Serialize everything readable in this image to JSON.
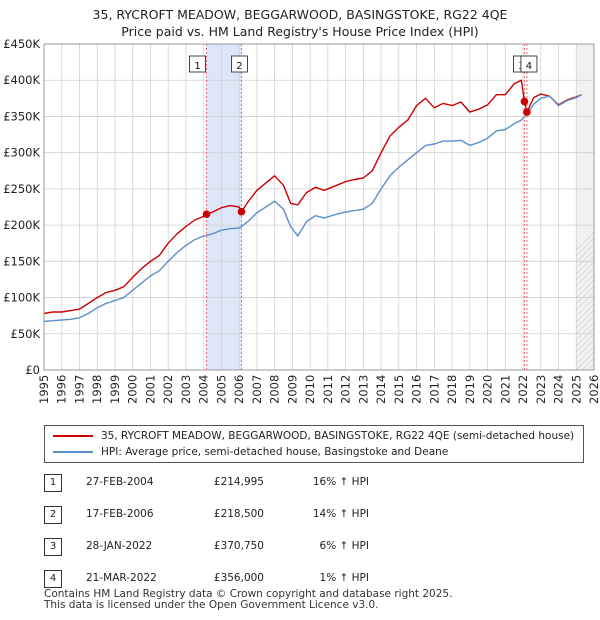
{
  "title_line1": "35, RYCROFT MEADOW, BEGGARWOOD, BASINGSTOKE, RG22 4QE",
  "title_line2": "Price paid vs. HM Land Registry's House Price Index (HPI)",
  "colors": {
    "property": "#cc0000",
    "hpi": "#5b8fcc",
    "shade": "#dde6f7",
    "grid": "#d0d0d0",
    "future": "#e8e8e8"
  },
  "chart_data": {
    "type": "line",
    "xlabel": "",
    "ylabel": "",
    "xlim": [
      1995,
      2026
    ],
    "ylim": [
      0,
      450000
    ],
    "x_ticks": [
      1995,
      1996,
      1997,
      1998,
      1999,
      2000,
      2001,
      2002,
      2003,
      2004,
      2005,
      2006,
      2007,
      2008,
      2009,
      2010,
      2011,
      2012,
      2013,
      2014,
      2015,
      2016,
      2017,
      2018,
      2019,
      2020,
      2021,
      2022,
      2023,
      2024,
      2025,
      2026
    ],
    "y_ticks": [
      {
        "value": 0,
        "label": "£0"
      },
      {
        "value": 50000,
        "label": "£50K"
      },
      {
        "value": 100000,
        "label": "£100K"
      },
      {
        "value": 150000,
        "label": "£150K"
      },
      {
        "value": 200000,
        "label": "£200K"
      },
      {
        "value": 250000,
        "label": "£250K"
      },
      {
        "value": 300000,
        "label": "£300K"
      },
      {
        "value": 350000,
        "label": "£350K"
      },
      {
        "value": 400000,
        "label": "£400K"
      },
      {
        "value": 450000,
        "label": "£450K"
      }
    ],
    "shaded_period": [
      2004.16,
      2006.13
    ],
    "future_start": 2025.0,
    "series": [
      {
        "name": "35, RYCROFT MEADOW, BEGGARWOOD, BASINGSTOKE, RG22 4QE (semi-detached house)",
        "color": "#cc0000",
        "x": [
          1995.0,
          1995.5,
          1996.0,
          1996.5,
          1997.0,
          1997.5,
          1998.0,
          1998.5,
          1999.0,
          1999.5,
          2000.0,
          2000.5,
          2001.0,
          2001.5,
          2002.0,
          2002.5,
          2003.0,
          2003.5,
          2004.0,
          2004.16,
          2004.5,
          2005.0,
          2005.5,
          2006.0,
          2006.13,
          2006.5,
          2007.0,
          2007.5,
          2008.0,
          2008.5,
          2008.9,
          2009.3,
          2009.8,
          2010.3,
          2010.8,
          2011.5,
          2012.0,
          2012.5,
          2013.0,
          2013.5,
          2014.0,
          2014.5,
          2015.0,
          2015.5,
          2016.0,
          2016.5,
          2017.0,
          2017.5,
          2018.0,
          2018.5,
          2019.0,
          2019.5,
          2020.0,
          2020.5,
          2021.0,
          2021.5,
          2021.9,
          2022.08,
          2022.22,
          2022.6,
          2023.0,
          2023.5,
          2024.0,
          2024.5,
          2025.0,
          2025.3
        ],
        "y": [
          78000,
          80000,
          80000,
          82000,
          84000,
          92000,
          100000,
          107000,
          110000,
          115000,
          128000,
          140000,
          150000,
          158000,
          175000,
          188000,
          198000,
          207000,
          212000,
          214995,
          218000,
          224000,
          227000,
          225000,
          218500,
          232000,
          248000,
          258000,
          268000,
          255000,
          230000,
          228000,
          245000,
          252000,
          248000,
          255000,
          260000,
          263000,
          265000,
          275000,
          300000,
          323000,
          335000,
          345000,
          365000,
          375000,
          362000,
          368000,
          365000,
          370000,
          356000,
          360000,
          366000,
          380000,
          380000,
          395000,
          400000,
          370750,
          356000,
          376000,
          381000,
          378000,
          366000,
          373000,
          377000,
          380000
        ]
      },
      {
        "name": "HPI: Average price, semi-detached house, Basingstoke and Deane",
        "color": "#5b8fcc",
        "x": [
          1995.0,
          1995.5,
          1996.0,
          1996.5,
          1997.0,
          1997.5,
          1998.0,
          1998.5,
          1999.0,
          1999.5,
          2000.0,
          2000.5,
          2001.0,
          2001.5,
          2002.0,
          2002.5,
          2003.0,
          2003.5,
          2004.0,
          2004.5,
          2005.0,
          2005.5,
          2006.0,
          2006.5,
          2007.0,
          2007.5,
          2008.0,
          2008.5,
          2008.9,
          2009.3,
          2009.8,
          2010.3,
          2010.8,
          2011.5,
          2012.0,
          2012.5,
          2013.0,
          2013.5,
          2014.0,
          2014.5,
          2015.0,
          2015.5,
          2016.0,
          2016.5,
          2017.0,
          2017.5,
          2018.0,
          2018.5,
          2019.0,
          2019.5,
          2020.0,
          2020.5,
          2021.0,
          2021.5,
          2021.9,
          2022.08,
          2022.22,
          2022.6,
          2023.0,
          2023.5,
          2024.0,
          2024.5,
          2025.0,
          2025.3
        ],
        "y": [
          67000,
          68000,
          69000,
          70000,
          72000,
          78000,
          86000,
          92000,
          96000,
          100000,
          110000,
          120000,
          130000,
          137000,
          150000,
          162000,
          172000,
          180000,
          185000,
          188000,
          193000,
          195000,
          196000,
          205000,
          217000,
          225000,
          233000,
          222000,
          198000,
          185000,
          205000,
          213000,
          210000,
          215000,
          218000,
          220000,
          222000,
          230000,
          250000,
          268000,
          280000,
          290000,
          300000,
          310000,
          312000,
          316000,
          316000,
          317000,
          310000,
          314000,
          320000,
          330000,
          332000,
          340000,
          345000,
          350000,
          353000,
          367000,
          375000,
          378000,
          365000,
          372000,
          376000,
          380000
        ]
      }
    ],
    "markers": [
      {
        "label": "1",
        "x": 2004.16,
        "y": 214995
      },
      {
        "label": "2",
        "x": 2006.13,
        "y": 218500
      },
      {
        "label": "3",
        "x": 2022.08,
        "y": 370750
      },
      {
        "label": "4",
        "x": 2022.22,
        "y": 356000
      }
    ]
  },
  "legend": {
    "property_label": "35, RYCROFT MEADOW, BEGGARWOOD, BASINGSTOKE, RG22 4QE (semi-detached house)",
    "hpi_label": "HPI: Average price, semi-detached house, Basingstoke and Deane"
  },
  "transactions": [
    {
      "num": "1",
      "date": "27-FEB-2004",
      "price": "£214,995",
      "hpi": "16% ↑ HPI"
    },
    {
      "num": "2",
      "date": "17-FEB-2006",
      "price": "£218,500",
      "hpi": "14% ↑ HPI"
    },
    {
      "num": "3",
      "date": "28-JAN-2022",
      "price": "£370,750",
      "hpi": "6% ↑ HPI"
    },
    {
      "num": "4",
      "date": "21-MAR-2022",
      "price": "£356,000",
      "hpi": "1% ↑ HPI"
    }
  ],
  "footer": {
    "line1": "Contains HM Land Registry data © Crown copyright and database right 2025.",
    "line2": "This data is licensed under the Open Government Licence v3.0."
  }
}
